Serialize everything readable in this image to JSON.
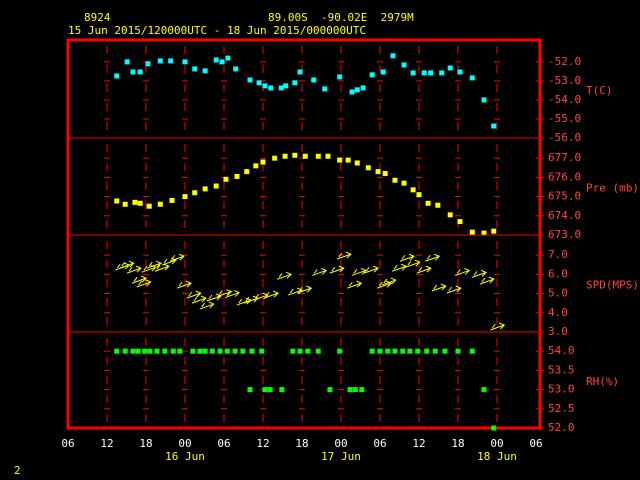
{
  "header": {
    "station": "8924",
    "location": "89.00S  -90.02E  2979M",
    "period": "15 Jun 2015/120000UTC - 18 Jun 2015/000000UTC",
    "page": "2"
  },
  "x_axis": {
    "xlim": [
      0,
      72
    ],
    "xticks": [
      {
        "value": 0,
        "label": "06"
      },
      {
        "value": 6,
        "label": "12"
      },
      {
        "value": 12,
        "label": "18"
      },
      {
        "value": 18,
        "label": "00"
      },
      {
        "value": 24,
        "label": "06"
      },
      {
        "value": 30,
        "label": "12"
      },
      {
        "value": 36,
        "label": "18"
      },
      {
        "value": 42,
        "label": "00"
      },
      {
        "value": 48,
        "label": "06"
      },
      {
        "value": 54,
        "label": "12"
      },
      {
        "value": 60,
        "label": "18"
      },
      {
        "value": 66,
        "label": "00"
      },
      {
        "value": 72,
        "label": "06"
      }
    ],
    "date_labels": [
      {
        "value": 18,
        "label": "16 Jun"
      },
      {
        "value": 42,
        "label": "17 Jun"
      },
      {
        "value": 66,
        "label": "18 Jun"
      }
    ]
  },
  "chart_data": [
    {
      "type": "scatter",
      "ylabel": "T(C)",
      "color": "#00ffff",
      "ylim": [
        -56,
        -50.85
      ],
      "yticks": [
        {
          "value": -52,
          "label": "-52.0"
        },
        {
          "value": -53,
          "label": "-53.0"
        },
        {
          "value": -54,
          "label": "-54.0"
        },
        {
          "value": -55,
          "label": "-55.0"
        },
        {
          "value": -56,
          "label": "-56.0"
        }
      ],
      "x": [
        7.5,
        9.1,
        10.0,
        11.1,
        12.3,
        14.2,
        15.8,
        18.0,
        19.5,
        21.1,
        22.8,
        23.7,
        24.6,
        25.8,
        28.0,
        29.4,
        30.3,
        31.2,
        32.8,
        33.5,
        34.9,
        35.7,
        37.8,
        39.5,
        41.8,
        43.7,
        44.5,
        45.4,
        46.8,
        48.5,
        50.0,
        51.7,
        53.1,
        54.8,
        55.8,
        57.5,
        58.8,
        60.3,
        62.2,
        64.0,
        65.5
      ],
      "values": [
        -52.74,
        -52.0,
        -52.53,
        -52.53,
        -52.1,
        -51.95,
        -51.95,
        -52.0,
        -52.37,
        -52.47,
        -51.9,
        -52.0,
        -51.8,
        -52.37,
        -52.95,
        -53.1,
        -53.26,
        -53.37,
        -53.37,
        -53.26,
        -53.1,
        -52.53,
        -52.95,
        -53.42,
        -52.79,
        -53.58,
        -53.47,
        -53.37,
        -52.68,
        -52.53,
        -51.68,
        -52.16,
        -52.58,
        -52.58,
        -52.58,
        -52.58,
        -52.32,
        -52.53,
        -52.84,
        -54.0,
        -55.37
      ]
    },
    {
      "type": "scatter",
      "ylabel": "Pre (mb)",
      "color": "#ffff00",
      "ylim": [
        673,
        678.05
      ],
      "yticks": [
        {
          "value": 677,
          "label": "677.0"
        },
        {
          "value": 676,
          "label": "676.0"
        },
        {
          "value": 675,
          "label": "675.0"
        },
        {
          "value": 674,
          "label": "674.0"
        },
        {
          "value": 673,
          "label": "673.0"
        }
      ],
      "x": [
        7.5,
        8.8,
        10.3,
        11.1,
        12.5,
        14.2,
        16.0,
        18.0,
        19.5,
        21.1,
        22.8,
        24.3,
        26.0,
        27.5,
        28.9,
        30.0,
        31.8,
        33.4,
        34.9,
        36.5,
        38.5,
        40.0,
        41.8,
        43.1,
        44.5,
        46.2,
        47.7,
        48.8,
        50.3,
        51.7,
        53.1,
        54.0,
        55.4,
        56.9,
        58.8,
        60.3,
        62.2,
        64.0,
        65.5
      ],
      "values": [
        674.77,
        674.6,
        674.7,
        674.65,
        674.5,
        674.6,
        674.8,
        675.0,
        675.2,
        675.4,
        675.55,
        675.9,
        676.05,
        676.3,
        676.6,
        676.8,
        677.0,
        677.1,
        677.15,
        677.1,
        677.1,
        677.1,
        676.9,
        676.9,
        676.75,
        676.5,
        676.3,
        676.2,
        675.85,
        675.7,
        675.35,
        675.1,
        674.65,
        674.55,
        674.05,
        673.7,
        673.15,
        673.1,
        673.2
      ]
    },
    {
      "type": "arrows",
      "ylabel": "SPD(MPS)",
      "color": "#ffff00",
      "ylim": [
        3,
        8.05
      ],
      "yticks": [
        {
          "value": 7,
          "label": "7.0"
        },
        {
          "value": 6,
          "label": "6.0"
        },
        {
          "value": 5,
          "label": "5.0"
        },
        {
          "value": 4,
          "label": "4.0"
        },
        {
          "value": 3,
          "label": "3.0"
        }
      ],
      "x": [
        8.5,
        9.2,
        10.3,
        11.1,
        11.8,
        12.6,
        13.4,
        14.6,
        15.7,
        16.9,
        18.0,
        19.5,
        20.3,
        21.5,
        22.6,
        24.2,
        25.4,
        27.2,
        28.3,
        29.8,
        31.4,
        33.4,
        35.1,
        36.5,
        38.8,
        41.5,
        42.6,
        44.2,
        44.9,
        46.8,
        48.8,
        49.5,
        51.1,
        52.3,
        53.2,
        54.9,
        56.2,
        57.2,
        59.5,
        60.8,
        63.4,
        64.6,
        66.2
      ],
      "values": [
        6.38,
        6.48,
        6.22,
        5.7,
        5.5,
        6.27,
        6.48,
        6.32,
        6.64,
        6.84,
        5.44,
        4.92,
        4.66,
        4.35,
        4.77,
        5.0,
        4.95,
        4.56,
        4.66,
        4.82,
        4.92,
        5.9,
        5.08,
        5.18,
        6.1,
        6.22,
        6.95,
        5.44,
        6.1,
        6.22,
        5.44,
        5.6,
        6.32,
        6.84,
        6.53,
        6.22,
        6.84,
        5.29,
        5.18,
        6.1,
        6.0,
        5.65,
        3.26
      ]
    },
    {
      "type": "scatter",
      "ylabel": "RH(%)",
      "color": "#00ff00",
      "ylim": [
        52,
        54.5
      ],
      "yticks": [
        {
          "value": 54,
          "label": "54.0"
        },
        {
          "value": 53.5,
          "label": "53.5"
        },
        {
          "value": 53,
          "label": "53.0"
        },
        {
          "value": 52.5,
          "label": "52.5"
        },
        {
          "value": 52,
          "label": "52.0"
        }
      ],
      "x": [
        7.5,
        8.8,
        10.0,
        10.8,
        11.8,
        12.6,
        13.7,
        14.9,
        16.2,
        17.2,
        19.2,
        20.3,
        21.1,
        22.2,
        23.4,
        24.5,
        25.7,
        26.9,
        28.0,
        28.3,
        29.8,
        30.3,
        31.1,
        32.9,
        34.6,
        35.7,
        36.9,
        38.5,
        40.3,
        41.8,
        43.4,
        44.2,
        45.2,
        46.8,
        48.0,
        49.2,
        50.3,
        51.5,
        52.6,
        53.8,
        55.2,
        56.5,
        58.0,
        60.0,
        62.2,
        64.0,
        65.5
      ],
      "values": [
        54,
        54,
        54,
        54,
        54,
        54,
        54,
        54,
        54,
        54,
        54,
        54,
        54,
        54,
        54,
        54,
        54,
        54,
        53,
        54,
        54,
        53,
        53,
        53,
        54,
        54,
        54,
        54,
        53,
        54,
        53,
        53,
        53,
        54,
        54,
        54,
        54,
        54,
        54,
        54,
        54,
        54,
        54,
        54,
        54,
        53,
        52
      ]
    }
  ]
}
